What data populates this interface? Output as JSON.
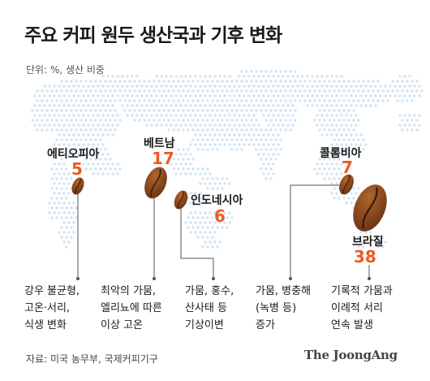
{
  "title": "주요 커피 원두 생산국과 기후 변화",
  "unit": "단위: %, 생산 비중",
  "source": "자료: 미국 농무부, 국제커피기구",
  "brand": "The JoongAng",
  "colors": {
    "map_dot": "#d3e4f2",
    "value": "#ee5a1f",
    "bean_dark": "#6b3515",
    "bean_light": "#b0642a",
    "leader": "#555555"
  },
  "chart_data": {
    "type": "bubble-map",
    "title": "주요 커피 원두 생산국과 기후 변화",
    "unit": "단위: %, 생산 비중",
    "countries": [
      {
        "name": "에티오피아",
        "value": "5",
        "note": [
          "강우 불균형,",
          "고온·서리,",
          "식생 변화"
        ]
      },
      {
        "name": "베트남",
        "value": "17",
        "note": [
          "최악의 가뭄,",
          "엘리뇨에 따른",
          "이상 고온"
        ]
      },
      {
        "name": "인도네시아",
        "value": "6",
        "note": [
          "가뭄, 홍수,",
          "산사태 등",
          "기상이변"
        ]
      },
      {
        "name": "콜롬비아",
        "value": "7",
        "note": [
          "가뭄, 병충해",
          "(녹병 등)",
          "증가"
        ]
      },
      {
        "name": "브라질",
        "value": "38",
        "note": [
          "기록적 가뭄과",
          "이례적 서리",
          "연속 발생"
        ]
      }
    ]
  }
}
